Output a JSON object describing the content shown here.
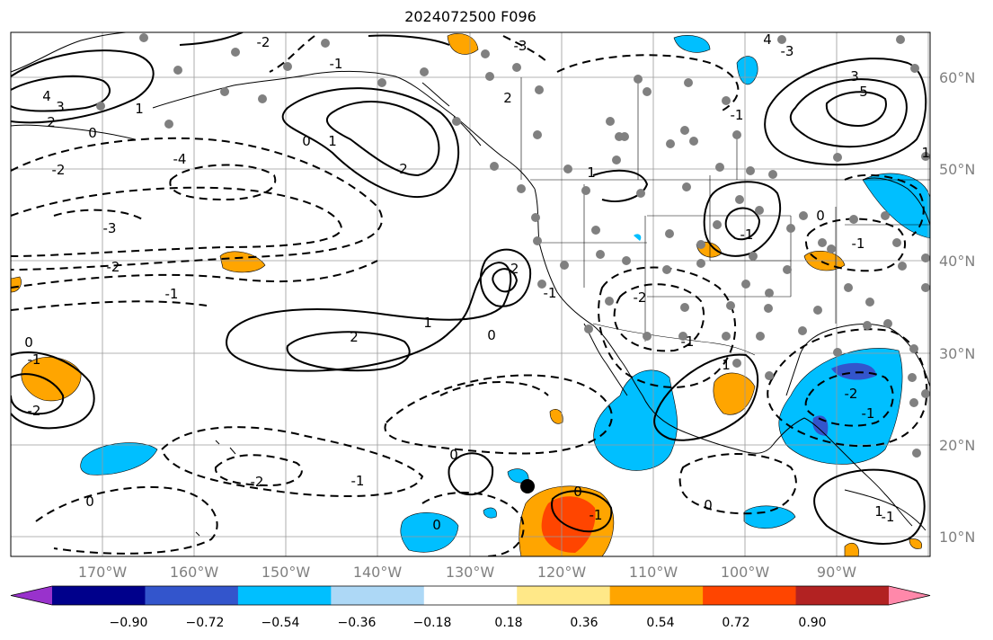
{
  "title": "2024072500 F096",
  "lat_labels": [
    "60°N",
    "50°N",
    "40°N",
    "30°N",
    "20°N",
    "10°N"
  ],
  "lon_labels": [
    "170°W",
    "160°W",
    "150°W",
    "140°W",
    "130°W",
    "120°W",
    "110°W",
    "100°W",
    "90°W"
  ],
  "colorbar": {
    "colors": [
      "#9932CC",
      "#00008B",
      "#3355CC",
      "#00BFFF",
      "#ADD8F6",
      "#FFFFFF",
      "#FFE888",
      "#FFA500",
      "#FF4500",
      "#B22222",
      "#FF88AA"
    ],
    "ticks": [
      "−0.90",
      "−0.72",
      "−0.54",
      "−0.36",
      "−0.18",
      "0.18",
      "0.36",
      "0.54",
      "0.72",
      "0.90"
    ]
  },
  "contour_labels": [
    "4",
    "3",
    "2",
    "1",
    "0",
    "-2",
    "-3",
    "-4",
    "-1",
    "5",
    "3",
    "-1",
    "-2",
    "2",
    "1",
    "0",
    "-1",
    "-2",
    "-3",
    "4",
    "1",
    "2",
    "-2",
    "0",
    "-1",
    "0",
    "-1",
    "-2",
    "0",
    "1",
    "0",
    "-2",
    "-2",
    "-1",
    "0",
    "-1",
    "0",
    "-3",
    "-2",
    "-1",
    "1",
    "-1",
    "-1",
    "1",
    "0",
    "-1",
    "2",
    "-1",
    "0",
    "1"
  ]
}
